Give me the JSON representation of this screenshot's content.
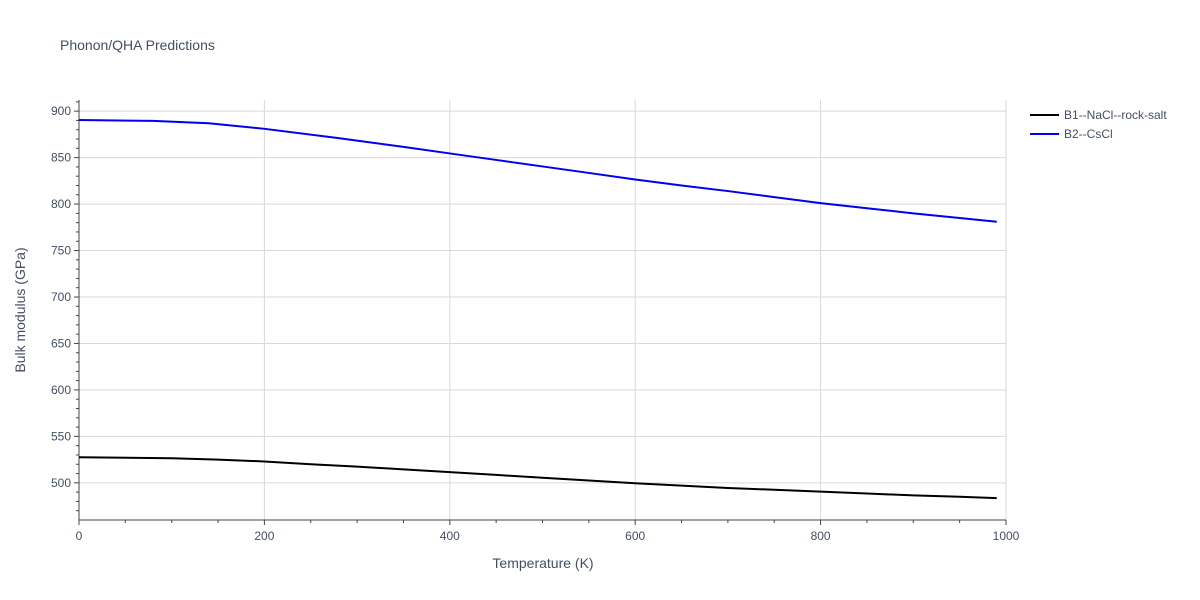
{
  "chart_data": {
    "type": "line",
    "title": "Phonon/QHA Predictions",
    "xlabel": "Temperature (K)",
    "ylabel": "Bulk modulus (GPa)",
    "xlim": [
      0,
      1000
    ],
    "ylim": [
      460,
      912
    ],
    "x_ticks": [
      0,
      200,
      400,
      600,
      800,
      1000
    ],
    "y_ticks": [
      500,
      550,
      600,
      650,
      700,
      750,
      800,
      850,
      900
    ],
    "grid": true,
    "legend_position": "top-right outside",
    "series": [
      {
        "name": "B1--NaCl--rock-salt",
        "color": "#000000",
        "x": [
          0,
          100,
          150,
          200,
          250,
          300,
          350,
          400,
          450,
          500,
          550,
          600,
          650,
          700,
          750,
          800,
          850,
          900,
          950,
          990
        ],
        "y": [
          527.5,
          526.5,
          525.0,
          523.0,
          520.0,
          517.5,
          514.5,
          511.5,
          508.5,
          505.5,
          502.5,
          499.5,
          497.0,
          494.5,
          492.5,
          490.5,
          488.5,
          486.5,
          485.0,
          483.5
        ]
      },
      {
        "name": "B2--CsCl",
        "color": "#0000ee",
        "x": [
          0,
          80,
          140,
          200,
          280,
          350,
          400,
          450,
          500,
          550,
          600,
          650,
          700,
          750,
          800,
          850,
          900,
          950,
          990
        ],
        "y": [
          890.5,
          889.5,
          887.0,
          881.0,
          871.0,
          861.5,
          854.5,
          847.5,
          840.5,
          833.5,
          826.5,
          820.0,
          814.0,
          807.5,
          801.0,
          795.5,
          790.0,
          785.0,
          781.0
        ]
      }
    ]
  }
}
